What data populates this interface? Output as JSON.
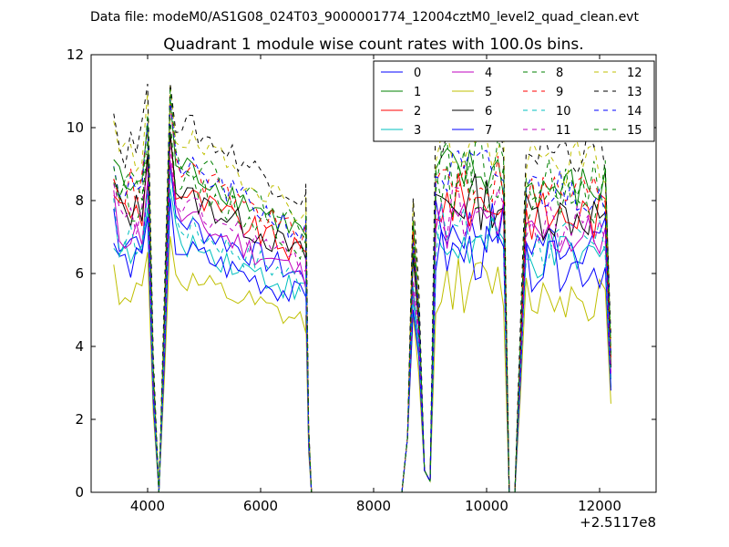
{
  "header": {
    "data_file": "Data file: modeM0/AS1G08_024T03_9000001774_12004cztM0_level2_quad_clean.evt"
  },
  "chart_data": {
    "type": "line",
    "title": "Quadrant 1 module wise count rates with 100.0s bins.",
    "xlabel": "",
    "ylabel": "",
    "x_offset_label": "+2.5117e8",
    "xlim": [
      3000,
      13000
    ],
    "ylim": [
      0,
      12
    ],
    "xticks": [
      4000,
      6000,
      8000,
      10000,
      12000
    ],
    "yticks": [
      0,
      2,
      4,
      6,
      8,
      10,
      12
    ],
    "grid": false,
    "legend_position": "top-right",
    "legend_columns": 4,
    "segments": [
      {
        "x_start": 3400,
        "x_end": 6800,
        "shape": "decay"
      },
      {
        "x_start": 8500,
        "x_end": 8900,
        "shape": "spike"
      },
      {
        "x_start": 9000,
        "x_end": 10300,
        "shape": "plateau"
      },
      {
        "x_start": 10700,
        "x_end": 12200,
        "shape": "plateau"
      }
    ],
    "series": [
      {
        "name": "0",
        "color": "#0000ff",
        "style": "solid",
        "level": 6.9
      },
      {
        "name": "1",
        "color": "#008000",
        "style": "solid",
        "level": 8.3
      },
      {
        "name": "2",
        "color": "#ff0000",
        "style": "solid",
        "level": 7.6
      },
      {
        "name": "3",
        "color": "#00bfbf",
        "style": "solid",
        "level": 6.4
      },
      {
        "name": "4",
        "color": "#bf00bf",
        "style": "solid",
        "level": 7.0
      },
      {
        "name": "5",
        "color": "#bfbf00",
        "style": "solid",
        "level": 5.4
      },
      {
        "name": "6",
        "color": "#000000",
        "style": "solid",
        "level": 7.6
      },
      {
        "name": "7",
        "color": "#0000ff",
        "style": "solid",
        "level": 6.2
      },
      {
        "name": "8",
        "color": "#008000",
        "style": "dashed",
        "level": 7.9
      },
      {
        "name": "9",
        "color": "#ff0000",
        "style": "dashed",
        "level": 8.2
      },
      {
        "name": "10",
        "color": "#00bfbf",
        "style": "dashed",
        "level": 6.8
      },
      {
        "name": "11",
        "color": "#bf00bf",
        "style": "dashed",
        "level": 7.3
      },
      {
        "name": "12",
        "color": "#bfbf00",
        "style": "dashed",
        "level": 9.0
      },
      {
        "name": "13",
        "color": "#000000",
        "style": "dashed",
        "level": 9.4
      },
      {
        "name": "14",
        "color": "#0000ff",
        "style": "dashed",
        "level": 8.3
      },
      {
        "name": "15",
        "color": "#008000",
        "style": "dashed",
        "level": 8.5
      }
    ]
  }
}
